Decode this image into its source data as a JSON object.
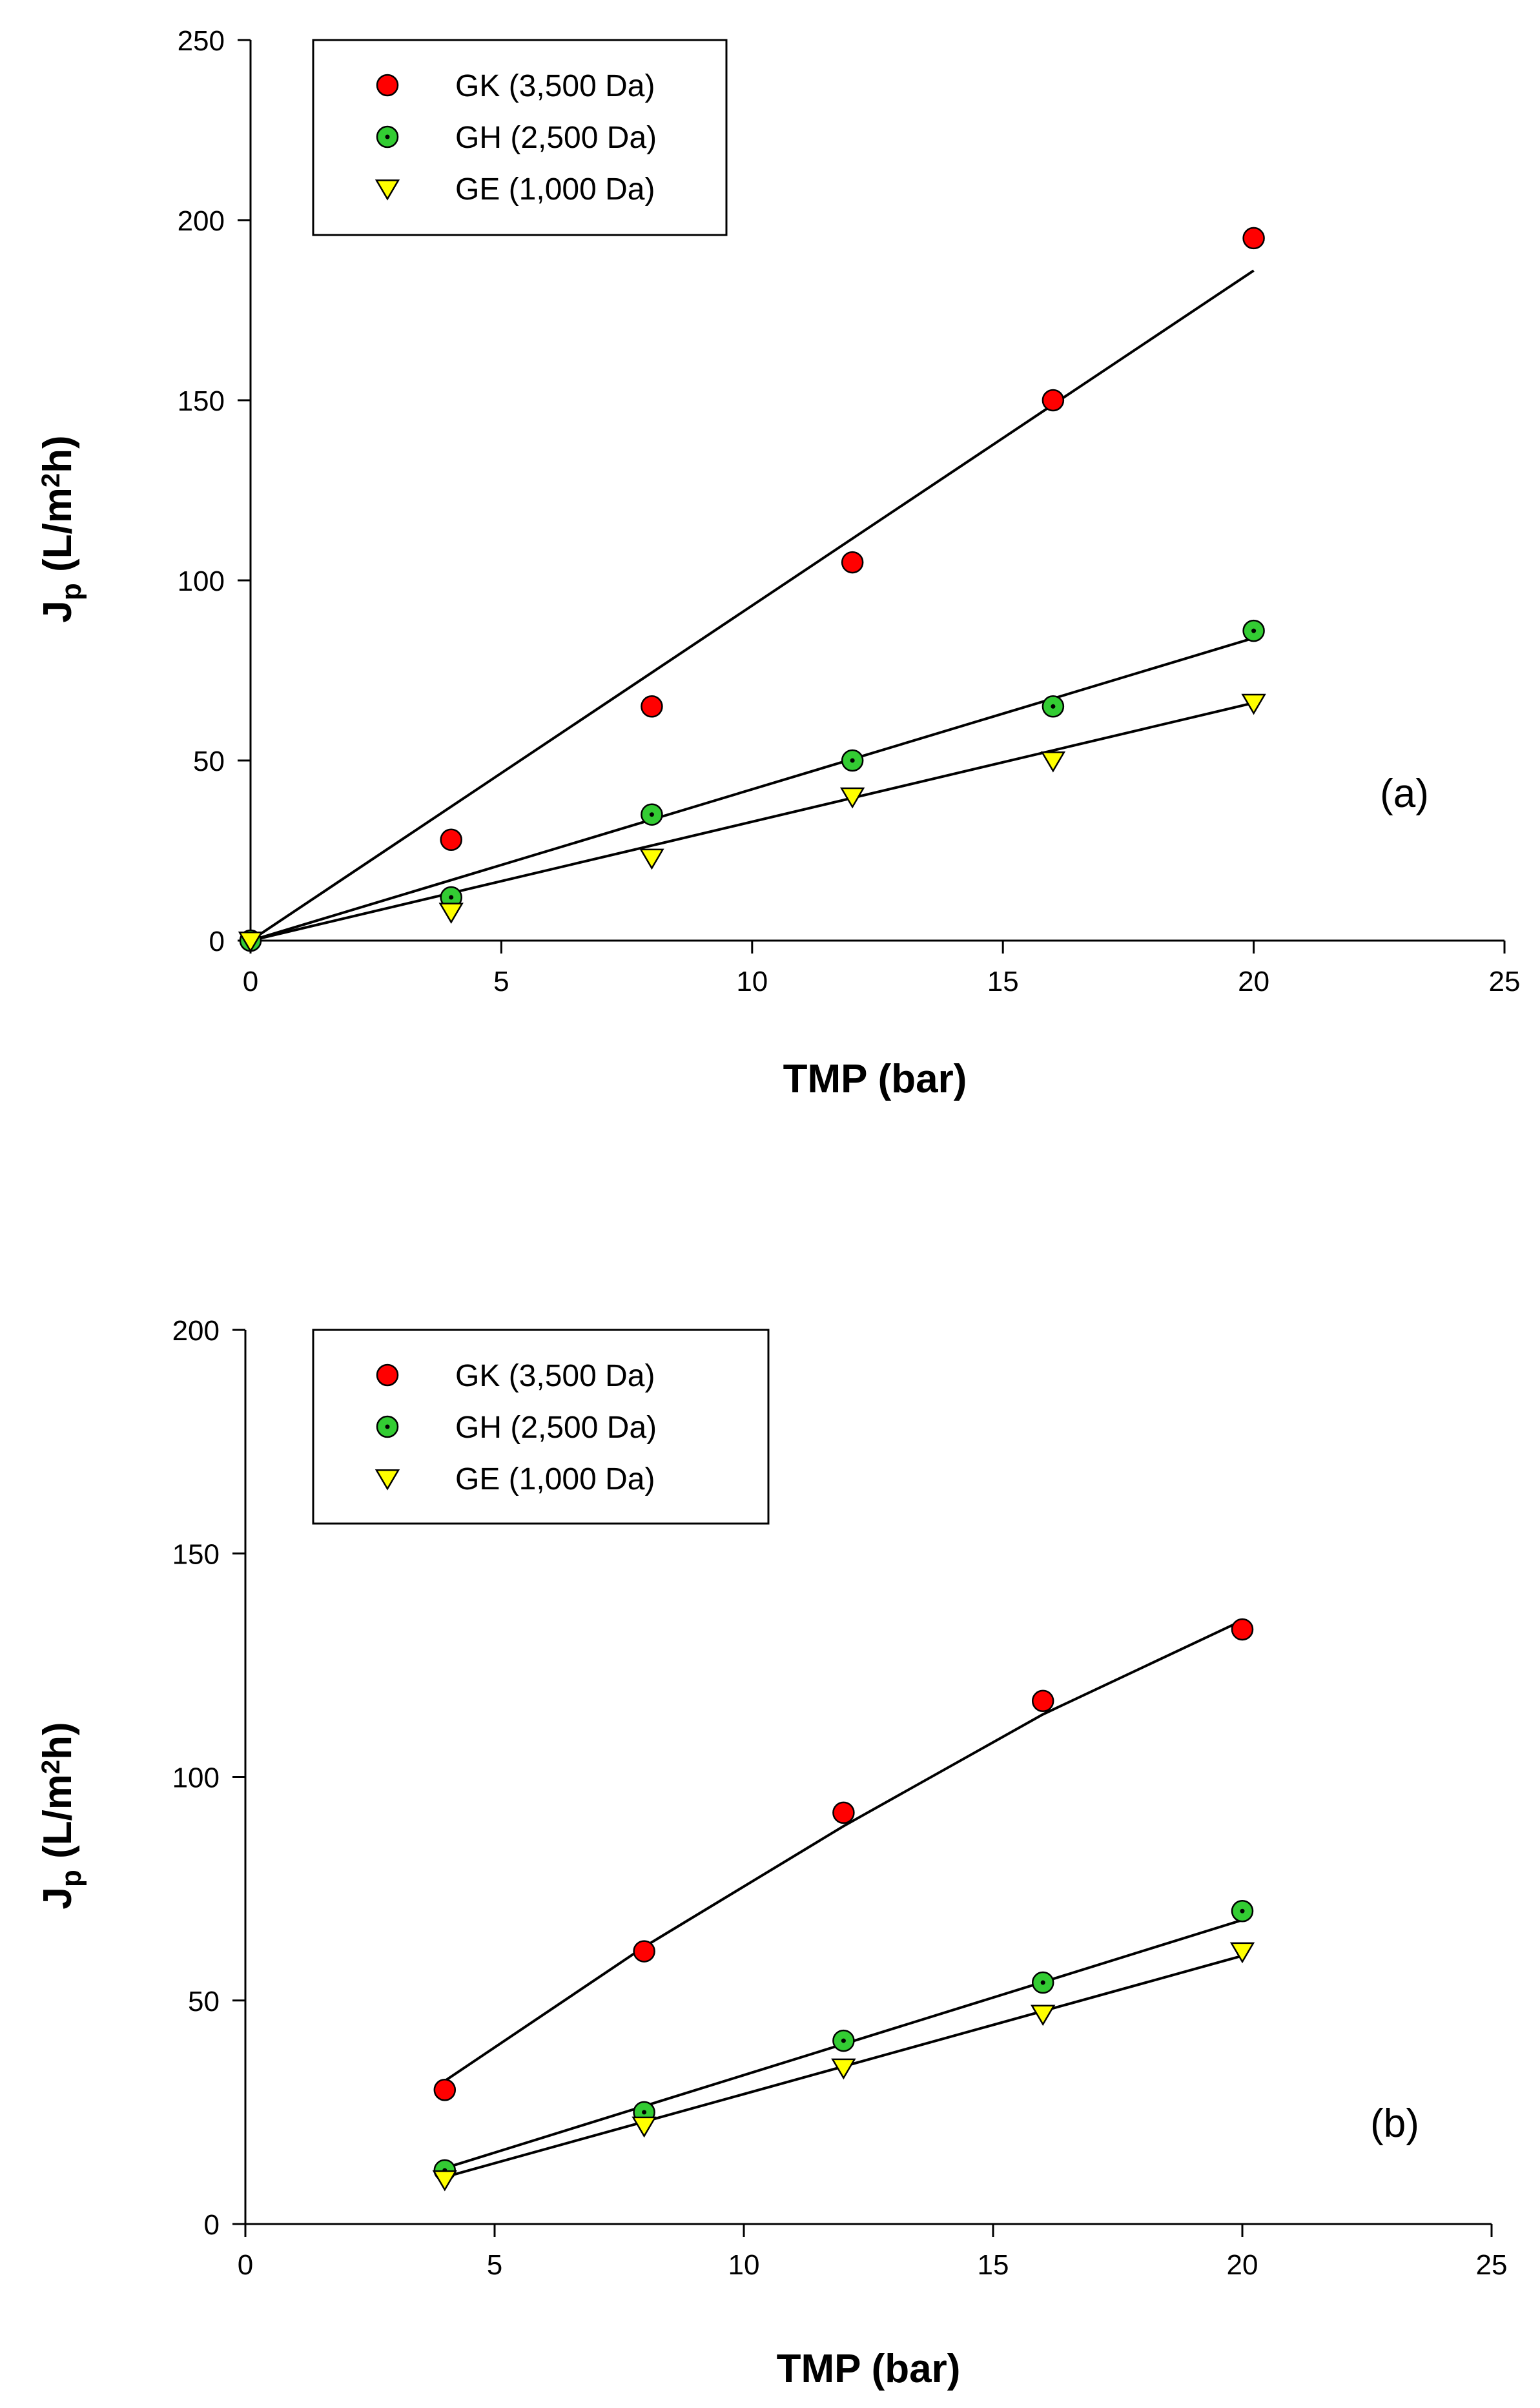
{
  "chart_data": [
    {
      "type": "scatter",
      "panel_label": "(a)",
      "xlabel": "TMP (bar)",
      "ylabel_main": "J",
      "ylabel_sub": "p",
      "ylabel_unit_a": " (L/m",
      "ylabel_unit_sup": "2",
      "ylabel_unit_b": "h)",
      "xlim": [
        0,
        25
      ],
      "ylim": [
        0,
        250
      ],
      "xticks": [
        0,
        5,
        10,
        15,
        20,
        25
      ],
      "yticks": [
        0,
        50,
        100,
        150,
        200,
        250
      ],
      "grid": false,
      "legend_position": "top-left",
      "series": [
        {
          "name": "GK (3,500 Da)",
          "marker": "circle",
          "color": "#ff0000",
          "x": [
            0,
            4,
            8,
            12,
            16,
            20
          ],
          "y": [
            0,
            28,
            65,
            105,
            150,
            195
          ],
          "fit": {
            "kind": "linear",
            "x": [
              0,
              20
            ],
            "y": [
              0,
              186
            ]
          }
        },
        {
          "name": "GH (2,500 Da)",
          "marker": "circle-dot",
          "color": "#33cc33",
          "x": [
            0,
            4,
            8,
            12,
            16,
            20
          ],
          "y": [
            0,
            12,
            35,
            50,
            65,
            86
          ],
          "fit": {
            "kind": "linear",
            "x": [
              0,
              20
            ],
            "y": [
              0,
              84
            ]
          }
        },
        {
          "name": "GE (1,000 Da)",
          "marker": "triangle-down",
          "color": "#ffff00",
          "x": [
            0,
            4,
            8,
            12,
            16,
            20
          ],
          "y": [
            0,
            8,
            23,
            40,
            50,
            66
          ],
          "fit": {
            "kind": "linear",
            "x": [
              0,
              20
            ],
            "y": [
              0,
              66
            ]
          }
        }
      ]
    },
    {
      "type": "scatter",
      "panel_label": "(b)",
      "xlabel": "TMP (bar)",
      "ylabel_main": "J",
      "ylabel_sub": "p",
      "ylabel_unit_a": " (L/m",
      "ylabel_unit_sup": "2",
      "ylabel_unit_b": "h)",
      "xlim": [
        0,
        25
      ],
      "ylim": [
        0,
        200
      ],
      "xticks": [
        0,
        5,
        10,
        15,
        20,
        25
      ],
      "yticks": [
        0,
        50,
        100,
        150,
        200
      ],
      "grid": false,
      "legend_position": "top-left",
      "series": [
        {
          "name": "GK (3,500 Da)",
          "marker": "circle",
          "color": "#ff0000",
          "x": [
            4,
            8,
            12,
            16,
            20
          ],
          "y": [
            30,
            61,
            92,
            117,
            133
          ],
          "fit": {
            "kind": "curve",
            "x": [
              4,
              8,
              12,
              16,
              20
            ],
            "y": [
              32,
              62,
              89,
              114,
              135
            ]
          }
        },
        {
          "name": "GH (2,500 Da)",
          "marker": "circle-dot",
          "color": "#33cc33",
          "x": [
            4,
            8,
            12,
            16,
            20
          ],
          "y": [
            12,
            25,
            41,
            54,
            70
          ],
          "fit": {
            "kind": "linear",
            "x": [
              4,
              20
            ],
            "y": [
              12.5,
              68
            ]
          }
        },
        {
          "name": "GE (1,000 Da)",
          "marker": "triangle-down",
          "color": "#ffff00",
          "x": [
            4,
            8,
            12,
            16,
            20
          ],
          "y": [
            10,
            22,
            35,
            47,
            61
          ],
          "fit": {
            "kind": "linear",
            "x": [
              4,
              20
            ],
            "y": [
              10.5,
              60
            ]
          }
        }
      ]
    }
  ]
}
